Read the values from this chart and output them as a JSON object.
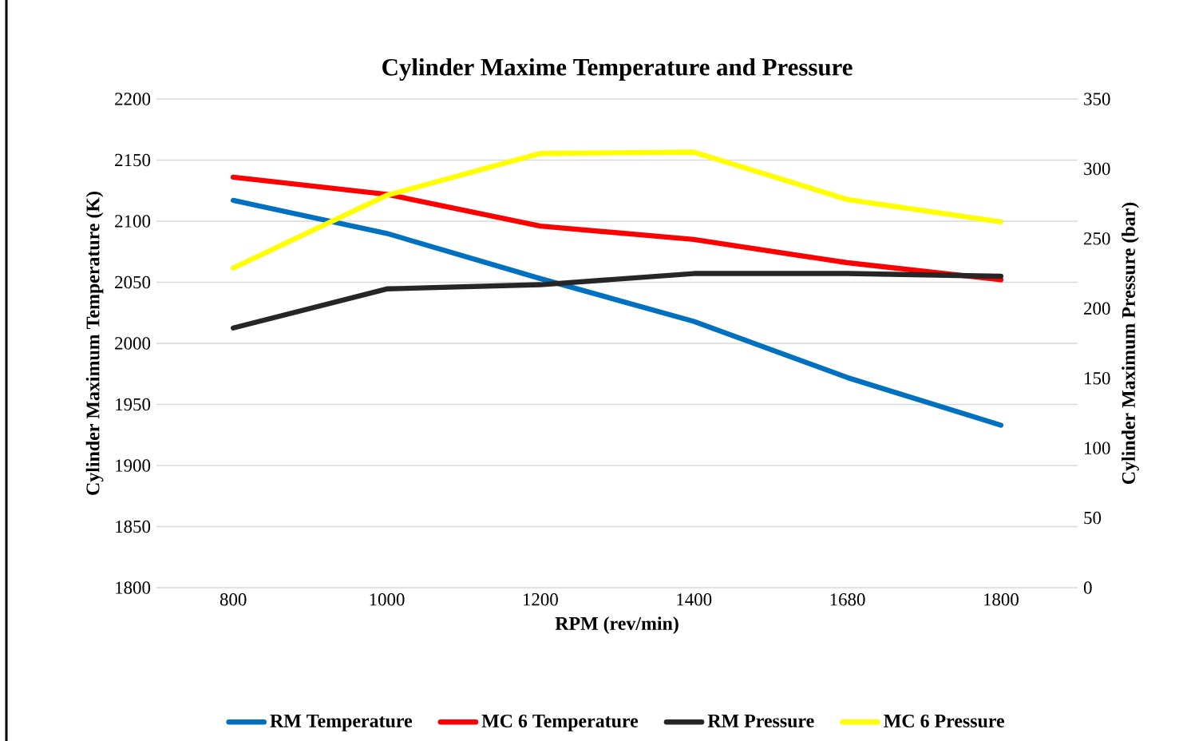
{
  "chart_data": {
    "type": "line",
    "title": "Cylinder Maxime Temperature and Pressure",
    "xlabel": "RPM (rev/min)",
    "ylabel": "Cylinder Maximum Temperature (K)",
    "y2label": "Cylinder Maximum Pressure (bar)",
    "categories": [
      "800",
      "1000",
      "1200",
      "1400",
      "1680",
      "1800"
    ],
    "series": [
      {
        "name": "RM Temperature",
        "color": "#0070c0",
        "values": [
          2117,
          2090,
          2053,
          2018,
          1972,
          1933
        ]
      },
      {
        "name": "MC 6 Temperature",
        "color": "#ff0000",
        "values": [
          2136,
          2122,
          2096,
          2085,
          2066,
          2052
        ]
      },
      {
        "name": "RM Pressure",
        "color": "#262626",
        "axis": "y2",
        "values": [
          186,
          214,
          217,
          225,
          225,
          223
        ]
      },
      {
        "name": "MC 6 Pressure",
        "color": "#ffff00",
        "axis": "y2",
        "values": [
          229,
          281,
          311,
          312,
          278,
          262
        ]
      }
    ],
    "ylim": [
      1800,
      2200
    ],
    "yticks": [
      1800,
      1850,
      1900,
      1950,
      2000,
      2050,
      2100,
      2150,
      2200
    ],
    "y2lim": [
      0,
      350
    ],
    "y2ticks": [
      0,
      50,
      100,
      150,
      200,
      250,
      300,
      350
    ],
    "grid": "y",
    "legend": "bottom",
    "marker": "none",
    "line_style": "solid"
  }
}
